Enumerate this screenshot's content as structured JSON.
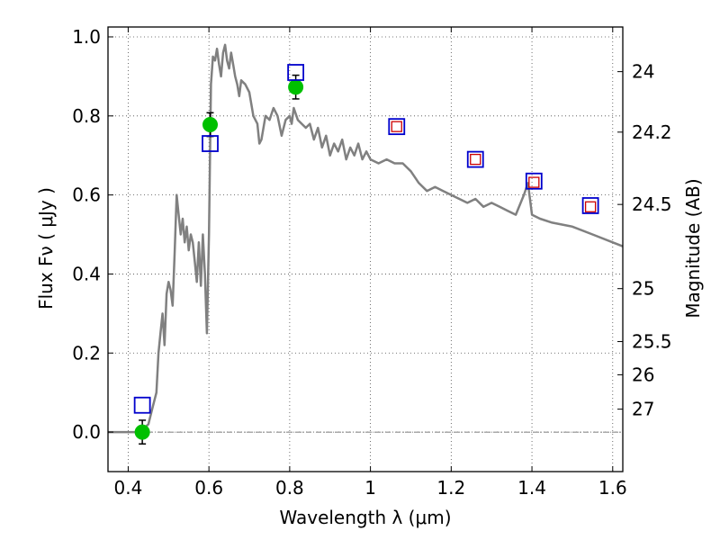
{
  "chart_data": {
    "type": "line",
    "xlabel": "Wavelength  λ (μm)",
    "ylabel": "Flux  Fν  ( μJy )",
    "y2label": "Magnitude (AB)",
    "xlim": [
      0.35,
      1.625
    ],
    "ylim": [
      -0.1,
      1.025
    ],
    "grid": true,
    "x_ticks": [
      0.4,
      0.6,
      0.8,
      1.0,
      1.2,
      1.4,
      1.6
    ],
    "x_tick_labels": [
      "0.4",
      "0.6",
      "0.8",
      "1",
      "1.2",
      "1.4",
      "1.6"
    ],
    "y_ticks": [
      0.0,
      0.2,
      0.4,
      0.6,
      0.8,
      1.0
    ],
    "y_tick_labels": [
      "0.0",
      "0.2",
      "0.4",
      "0.6",
      "0.8",
      "1.0"
    ],
    "y2_ticks": [
      {
        "label": "24",
        "flux": 0.912
      },
      {
        "label": "24.2",
        "flux": 0.759
      },
      {
        "label": "24.5",
        "flux": 0.576
      },
      {
        "label": "25",
        "flux": 0.363
      },
      {
        "label": "25.5",
        "flux": 0.229
      },
      {
        "label": "26",
        "flux": 0.145
      },
      {
        "label": "27",
        "flux": 0.058
      }
    ],
    "zero_line": 0.0,
    "series": [
      {
        "name": "model_sed",
        "kind": "line",
        "color": "#808080",
        "x": [
          0.35,
          0.43,
          0.45,
          0.46,
          0.47,
          0.475,
          0.48,
          0.485,
          0.49,
          0.495,
          0.5,
          0.505,
          0.51,
          0.515,
          0.52,
          0.525,
          0.53,
          0.535,
          0.54,
          0.545,
          0.55,
          0.555,
          0.56,
          0.565,
          0.57,
          0.575,
          0.58,
          0.585,
          0.59,
          0.595,
          0.6,
          0.605,
          0.61,
          0.615,
          0.62,
          0.625,
          0.63,
          0.635,
          0.64,
          0.645,
          0.65,
          0.655,
          0.66,
          0.665,
          0.67,
          0.675,
          0.68,
          0.69,
          0.7,
          0.71,
          0.72,
          0.725,
          0.73,
          0.74,
          0.75,
          0.76,
          0.77,
          0.78,
          0.79,
          0.8,
          0.805,
          0.81,
          0.82,
          0.83,
          0.84,
          0.85,
          0.86,
          0.87,
          0.88,
          0.89,
          0.9,
          0.91,
          0.92,
          0.93,
          0.94,
          0.95,
          0.96,
          0.97,
          0.98,
          0.99,
          1.0,
          1.02,
          1.04,
          1.06,
          1.08,
          1.1,
          1.12,
          1.14,
          1.16,
          1.18,
          1.2,
          1.22,
          1.24,
          1.26,
          1.28,
          1.3,
          1.32,
          1.34,
          1.36,
          1.38,
          1.39,
          1.4,
          1.42,
          1.45,
          1.5,
          1.55,
          1.6,
          1.625
        ],
        "y": [
          0.0,
          0.0,
          0.02,
          0.06,
          0.1,
          0.2,
          0.25,
          0.3,
          0.22,
          0.35,
          0.38,
          0.36,
          0.32,
          0.45,
          0.6,
          0.55,
          0.5,
          0.54,
          0.48,
          0.52,
          0.46,
          0.5,
          0.48,
          0.43,
          0.38,
          0.48,
          0.37,
          0.5,
          0.4,
          0.25,
          0.5,
          0.88,
          0.95,
          0.94,
          0.97,
          0.93,
          0.9,
          0.96,
          0.98,
          0.94,
          0.92,
          0.96,
          0.93,
          0.9,
          0.88,
          0.85,
          0.89,
          0.88,
          0.86,
          0.8,
          0.78,
          0.73,
          0.74,
          0.8,
          0.79,
          0.82,
          0.8,
          0.75,
          0.79,
          0.8,
          0.78,
          0.82,
          0.79,
          0.78,
          0.77,
          0.78,
          0.74,
          0.77,
          0.72,
          0.75,
          0.7,
          0.73,
          0.71,
          0.74,
          0.69,
          0.72,
          0.7,
          0.73,
          0.69,
          0.71,
          0.69,
          0.68,
          0.69,
          0.68,
          0.68,
          0.66,
          0.63,
          0.61,
          0.62,
          0.61,
          0.6,
          0.59,
          0.58,
          0.59,
          0.57,
          0.58,
          0.57,
          0.56,
          0.55,
          0.6,
          0.63,
          0.55,
          0.54,
          0.53,
          0.52,
          0.5,
          0.48,
          0.47
        ]
      },
      {
        "name": "observed",
        "kind": "points",
        "color": "#00c000",
        "x": [
          0.435,
          0.603,
          0.815
        ],
        "y": [
          0.0,
          0.778,
          0.873
        ],
        "yerr": [
          0.03,
          0.03,
          0.03
        ]
      },
      {
        "name": "model_bands",
        "kind": "squares",
        "color": "#0000cc",
        "x": [
          0.435,
          0.603,
          0.815,
          1.065,
          1.26,
          1.405,
          1.545
        ],
        "y": [
          0.068,
          0.73,
          0.91,
          0.773,
          0.69,
          0.635,
          0.573
        ]
      },
      {
        "name": "predicted",
        "kind": "small_squares",
        "color": "#cc0000",
        "x": [
          1.065,
          1.26,
          1.405,
          1.545
        ],
        "y": [
          0.773,
          0.69,
          0.632,
          0.57
        ]
      }
    ]
  }
}
